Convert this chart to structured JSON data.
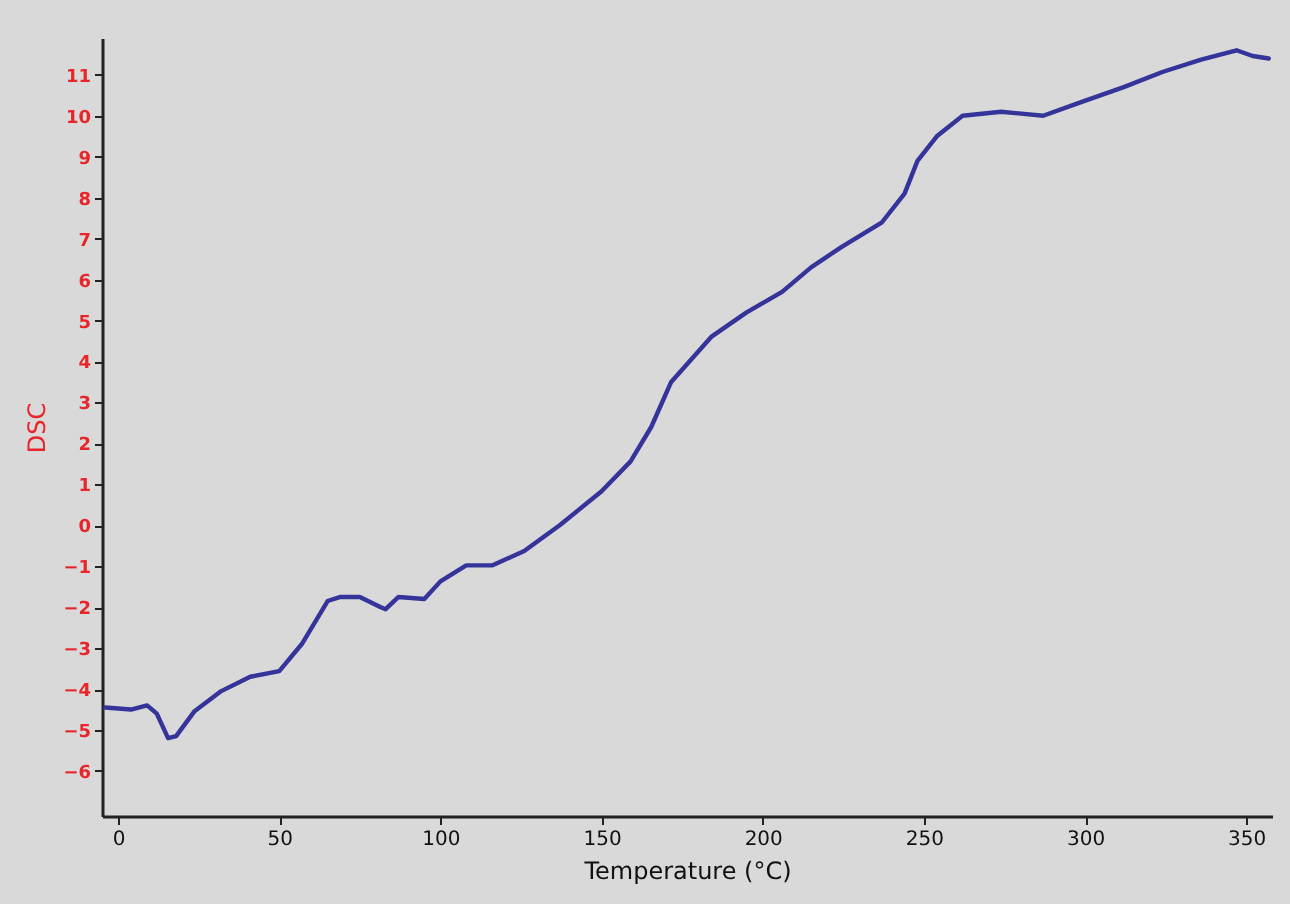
{
  "chart_data": {
    "type": "line",
    "xlabel": "Temperature (°C)",
    "ylabel": "DSC",
    "xlim": [
      -5,
      358
    ],
    "ylim": [
      -7.1,
      11.9
    ],
    "xticks": [
      0,
      50,
      100,
      150,
      200,
      250,
      300,
      350
    ],
    "yticks": [
      -6,
      -5,
      -4,
      -3,
      -2,
      -1,
      0,
      1,
      2,
      3,
      4,
      5,
      6,
      7,
      8,
      9,
      10,
      11
    ],
    "marker": "none",
    "line_style": "solid",
    "x": [
      -4,
      4,
      9,
      12,
      15.5,
      18,
      23.6,
      32,
      41,
      50,
      57,
      65,
      69,
      75,
      81.5,
      83,
      87,
      95,
      100,
      108,
      116,
      126,
      137,
      150,
      159,
      165.4,
      171.6,
      184,
      195,
      206,
      215,
      224.5,
      237,
      244,
      248,
      254,
      262,
      274,
      287,
      299,
      312,
      324,
      336,
      347,
      352,
      357
    ],
    "series": [
      {
        "color": "#34349a",
        "values": [
          -4.45,
          -4.5,
          -4.4,
          -4.6,
          -5.2,
          -5.15,
          -4.55,
          -4.05,
          -3.7,
          -3.56,
          -2.9,
          -1.85,
          -1.75,
          -1.75,
          -2.0,
          -2.05,
          -1.75,
          -1.8,
          -1.37,
          -0.98,
          -0.98,
          -0.63,
          0,
          0.83,
          1.56,
          2.4,
          3.5,
          4.6,
          5.2,
          5.7,
          6.3,
          6.8,
          7.4,
          8.1,
          8.9,
          9.5,
          10.0,
          10.1,
          10.0,
          10.34,
          10.7,
          11.07,
          11.37,
          11.6,
          11.46,
          11.4
        ]
      }
    ]
  }
}
